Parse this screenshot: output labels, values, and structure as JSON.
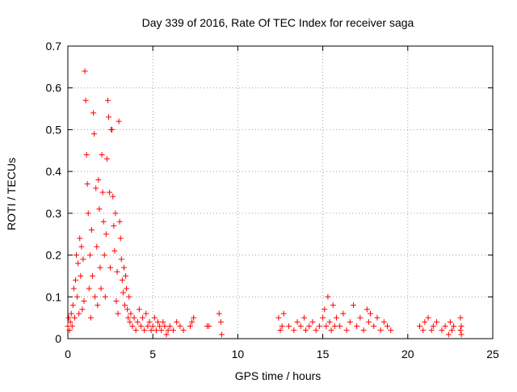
{
  "chart_data": {
    "type": "scatter",
    "title": "Day 339 of 2016, Rate Of TEC Index for receiver saga",
    "xlabel": "GPS time / hours",
    "ylabel": "ROTI / TECUs",
    "xlim": [
      0,
      25
    ],
    "ylim": [
      0,
      0.7
    ],
    "x_ticks": [
      0,
      5,
      10,
      15,
      20,
      25
    ],
    "y_ticks": [
      0,
      0.1,
      0.2,
      0.3,
      0.4,
      0.5,
      0.6,
      0.7
    ],
    "x_tick_labels": [
      "0",
      "5",
      "10",
      "15",
      "20",
      "25"
    ],
    "y_tick_labels": [
      "0",
      "0.1",
      "0.2",
      "0.3",
      "0.4",
      "0.5",
      "0.6",
      "0.7"
    ],
    "grid": true,
    "marker": "+",
    "marker_color": "#ff0000",
    "series": [
      {
        "name": "ROTI",
        "points": [
          [
            0.0,
            0.03
          ],
          [
            0.05,
            0.05
          ],
          [
            0.1,
            0.02
          ],
          [
            0.15,
            0.04
          ],
          [
            0.2,
            0.06
          ],
          [
            0.25,
            0.03
          ],
          [
            0.3,
            0.08
          ],
          [
            0.35,
            0.12
          ],
          [
            0.4,
            0.05
          ],
          [
            0.45,
            0.14
          ],
          [
            0.5,
            0.2
          ],
          [
            0.55,
            0.1
          ],
          [
            0.6,
            0.18
          ],
          [
            0.65,
            0.06
          ],
          [
            0.7,
            0.24
          ],
          [
            0.75,
            0.15
          ],
          [
            0.8,
            0.22
          ],
          [
            0.85,
            0.07
          ],
          [
            0.9,
            0.19
          ],
          [
            0.95,
            0.09
          ],
          [
            1.0,
            0.64
          ],
          [
            1.05,
            0.57
          ],
          [
            1.1,
            0.44
          ],
          [
            1.15,
            0.37
          ],
          [
            1.2,
            0.3
          ],
          [
            1.25,
            0.12
          ],
          [
            1.3,
            0.2
          ],
          [
            1.35,
            0.05
          ],
          [
            1.4,
            0.26
          ],
          [
            1.45,
            0.15
          ],
          [
            1.5,
            0.54
          ],
          [
            1.55,
            0.49
          ],
          [
            1.6,
            0.1
          ],
          [
            1.65,
            0.36
          ],
          [
            1.7,
            0.22
          ],
          [
            1.75,
            0.08
          ],
          [
            1.8,
            0.38
          ],
          [
            1.85,
            0.31
          ],
          [
            1.9,
            0.17
          ],
          [
            1.95,
            0.12
          ],
          [
            2.0,
            0.44
          ],
          [
            2.05,
            0.35
          ],
          [
            2.1,
            0.28
          ],
          [
            2.15,
            0.2
          ],
          [
            2.2,
            0.1
          ],
          [
            2.25,
            0.25
          ],
          [
            2.3,
            0.43
          ],
          [
            2.35,
            0.57
          ],
          [
            2.4,
            0.53
          ],
          [
            2.45,
            0.35
          ],
          [
            2.5,
            0.17
          ],
          [
            2.55,
            0.5
          ],
          [
            2.6,
            0.5
          ],
          [
            2.65,
            0.34
          ],
          [
            2.7,
            0.27
          ],
          [
            2.75,
            0.21
          ],
          [
            2.8,
            0.3
          ],
          [
            2.85,
            0.09
          ],
          [
            2.9,
            0.16
          ],
          [
            2.95,
            0.06
          ],
          [
            3.0,
            0.52
          ],
          [
            3.05,
            0.28
          ],
          [
            3.1,
            0.24
          ],
          [
            3.15,
            0.19
          ],
          [
            3.2,
            0.14
          ],
          [
            3.25,
            0.11
          ],
          [
            3.3,
            0.17
          ],
          [
            3.35,
            0.08
          ],
          [
            3.4,
            0.15
          ],
          [
            3.45,
            0.12
          ],
          [
            3.5,
            0.07
          ],
          [
            3.55,
            0.05
          ],
          [
            3.6,
            0.1
          ],
          [
            3.65,
            0.04
          ],
          [
            3.7,
            0.06
          ],
          [
            3.8,
            0.03
          ],
          [
            3.9,
            0.05
          ],
          [
            4.0,
            0.02
          ],
          [
            4.1,
            0.04
          ],
          [
            4.2,
            0.07
          ],
          [
            4.3,
            0.03
          ],
          [
            4.4,
            0.05
          ],
          [
            4.5,
            0.02
          ],
          [
            4.6,
            0.06
          ],
          [
            4.7,
            0.03
          ],
          [
            4.8,
            0.04
          ],
          [
            4.9,
            0.02
          ],
          [
            5.0,
            0.03
          ],
          [
            5.1,
            0.05
          ],
          [
            5.2,
            0.02
          ],
          [
            5.3,
            0.04
          ],
          [
            5.4,
            0.03
          ],
          [
            5.5,
            0.02
          ],
          [
            5.6,
            0.04
          ],
          [
            5.7,
            0.03
          ],
          [
            5.8,
            0.01
          ],
          [
            5.9,
            0.02
          ],
          [
            6.0,
            0.03
          ],
          [
            6.2,
            0.02
          ],
          [
            6.4,
            0.04
          ],
          [
            6.6,
            0.03
          ],
          [
            6.8,
            0.02
          ],
          [
            7.2,
            0.03
          ],
          [
            7.3,
            0.04
          ],
          [
            7.4,
            0.05
          ],
          [
            8.2,
            0.03
          ],
          [
            8.3,
            0.03
          ],
          [
            8.9,
            0.06
          ],
          [
            9.0,
            0.04
          ],
          [
            9.05,
            0.01
          ],
          [
            12.4,
            0.05
          ],
          [
            12.5,
            0.02
          ],
          [
            12.6,
            0.03
          ],
          [
            12.7,
            0.06
          ],
          [
            13.0,
            0.03
          ],
          [
            13.3,
            0.02
          ],
          [
            13.5,
            0.04
          ],
          [
            13.7,
            0.03
          ],
          [
            13.9,
            0.05
          ],
          [
            14.0,
            0.02
          ],
          [
            14.2,
            0.03
          ],
          [
            14.4,
            0.04
          ],
          [
            14.6,
            0.02
          ],
          [
            14.8,
            0.03
          ],
          [
            15.0,
            0.05
          ],
          [
            15.1,
            0.07
          ],
          [
            15.2,
            0.03
          ],
          [
            15.3,
            0.1
          ],
          [
            15.4,
            0.04
          ],
          [
            15.5,
            0.02
          ],
          [
            15.6,
            0.08
          ],
          [
            15.7,
            0.03
          ],
          [
            15.8,
            0.05
          ],
          [
            16.0,
            0.03
          ],
          [
            16.2,
            0.06
          ],
          [
            16.4,
            0.02
          ],
          [
            16.6,
            0.04
          ],
          [
            16.8,
            0.08
          ],
          [
            17.0,
            0.03
          ],
          [
            17.2,
            0.05
          ],
          [
            17.4,
            0.02
          ],
          [
            17.6,
            0.07
          ],
          [
            17.7,
            0.04
          ],
          [
            17.8,
            0.06
          ],
          [
            18.0,
            0.03
          ],
          [
            18.2,
            0.05
          ],
          [
            18.4,
            0.02
          ],
          [
            18.6,
            0.04
          ],
          [
            18.8,
            0.03
          ],
          [
            19.0,
            0.02
          ],
          [
            20.7,
            0.03
          ],
          [
            20.9,
            0.02
          ],
          [
            21.0,
            0.04
          ],
          [
            21.2,
            0.05
          ],
          [
            21.4,
            0.02
          ],
          [
            21.5,
            0.03
          ],
          [
            21.7,
            0.04
          ],
          [
            22.0,
            0.02
          ],
          [
            22.2,
            0.03
          ],
          [
            22.4,
            0.01
          ],
          [
            22.5,
            0.04
          ],
          [
            22.6,
            0.02
          ],
          [
            22.7,
            0.03
          ],
          [
            23.1,
            0.05
          ],
          [
            23.1,
            0.02
          ],
          [
            23.15,
            0.03
          ],
          [
            23.15,
            0.01
          ]
        ]
      }
    ]
  }
}
